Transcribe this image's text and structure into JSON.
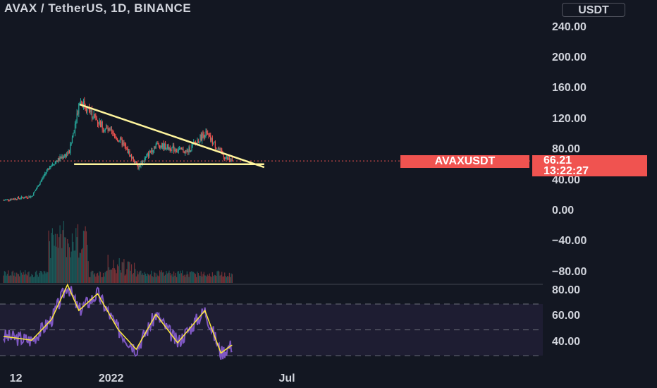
{
  "header": {
    "title": "AVAX / TetherUS, 1D, BINANCE",
    "currency": "USDT"
  },
  "price_tag": {
    "symbol": "AVAXUSDT",
    "price": "66.21",
    "countdown": "13:22:27"
  },
  "colors": {
    "background": "#131722",
    "up": "#26a69a",
    "down": "#ef5350",
    "trendline": "#fff59d",
    "rsi": "#7e57c2",
    "rsi_ma": "#ffeb3b",
    "rsi_band": "#7e57c2"
  },
  "chart_data": [
    {
      "type": "candlestick",
      "title": "AVAX / TetherUS, 1D, BINANCE",
      "y_ticks": [
        "240.00",
        "200.00",
        "160.00",
        "120.00",
        "80.00",
        "40.00",
        "0.00",
        "−40.00",
        "−80.00"
      ],
      "ylim": [
        -85,
        250
      ],
      "x_ticks": [
        "12",
        "2022",
        "Jul"
      ],
      "last_price": 66.21,
      "key_points": [
        {
          "date": "2021-09-01",
          "close": 15
        },
        {
          "date": "2021-10-01",
          "close": 20
        },
        {
          "date": "2021-10-20",
          "close": 60
        },
        {
          "date": "2021-11-10",
          "close": 78
        },
        {
          "date": "2021-11-21",
          "close": 146
        },
        {
          "date": "2021-12-15",
          "close": 112
        },
        {
          "date": "2022-01-05",
          "close": 90
        },
        {
          "date": "2022-01-22",
          "close": 58
        },
        {
          "date": "2022-02-10",
          "close": 88
        },
        {
          "date": "2022-03-15",
          "close": 78
        },
        {
          "date": "2022-04-03",
          "close": 103
        },
        {
          "date": "2022-04-25",
          "close": 70
        },
        {
          "date": "2022-05-02",
          "close": 66.21
        }
      ],
      "trendlines": [
        {
          "name": "descending resistance",
          "from": {
            "date": "2021-11-21",
            "price": 140
          },
          "to": {
            "date": "2022-06-05",
            "price": 58
          }
        },
        {
          "name": "horizontal support",
          "from": {
            "date": "2021-11-15",
            "price": 62
          },
          "to": {
            "date": "2022-06-05",
            "price": 62
          }
        }
      ],
      "volume_note": "volume histogram at bottom of price pane, peak around 2021-11"
    },
    {
      "type": "line",
      "title": "RSI",
      "y_ticks": [
        "80.00",
        "60.00",
        "40.00"
      ],
      "bands": [
        30,
        50,
        70
      ],
      "ylim": [
        20,
        90
      ],
      "series": [
        {
          "name": "",
          "x": [
            "2021-09-01",
            "2021-10-01",
            "2021-10-22",
            "2021-11-08",
            "2021-11-20",
            "2021-12-10",
            "2022-01-01",
            "2022-01-20",
            "2022-02-10",
            "2022-03-05",
            "2022-04-03",
            "2022-04-20",
            "2022-05-01"
          ],
          "values": [
            45,
            42,
            58,
            85,
            65,
            78,
            50,
            35,
            62,
            40,
            65,
            32,
            38
          ]
        }
      ]
    }
  ]
}
